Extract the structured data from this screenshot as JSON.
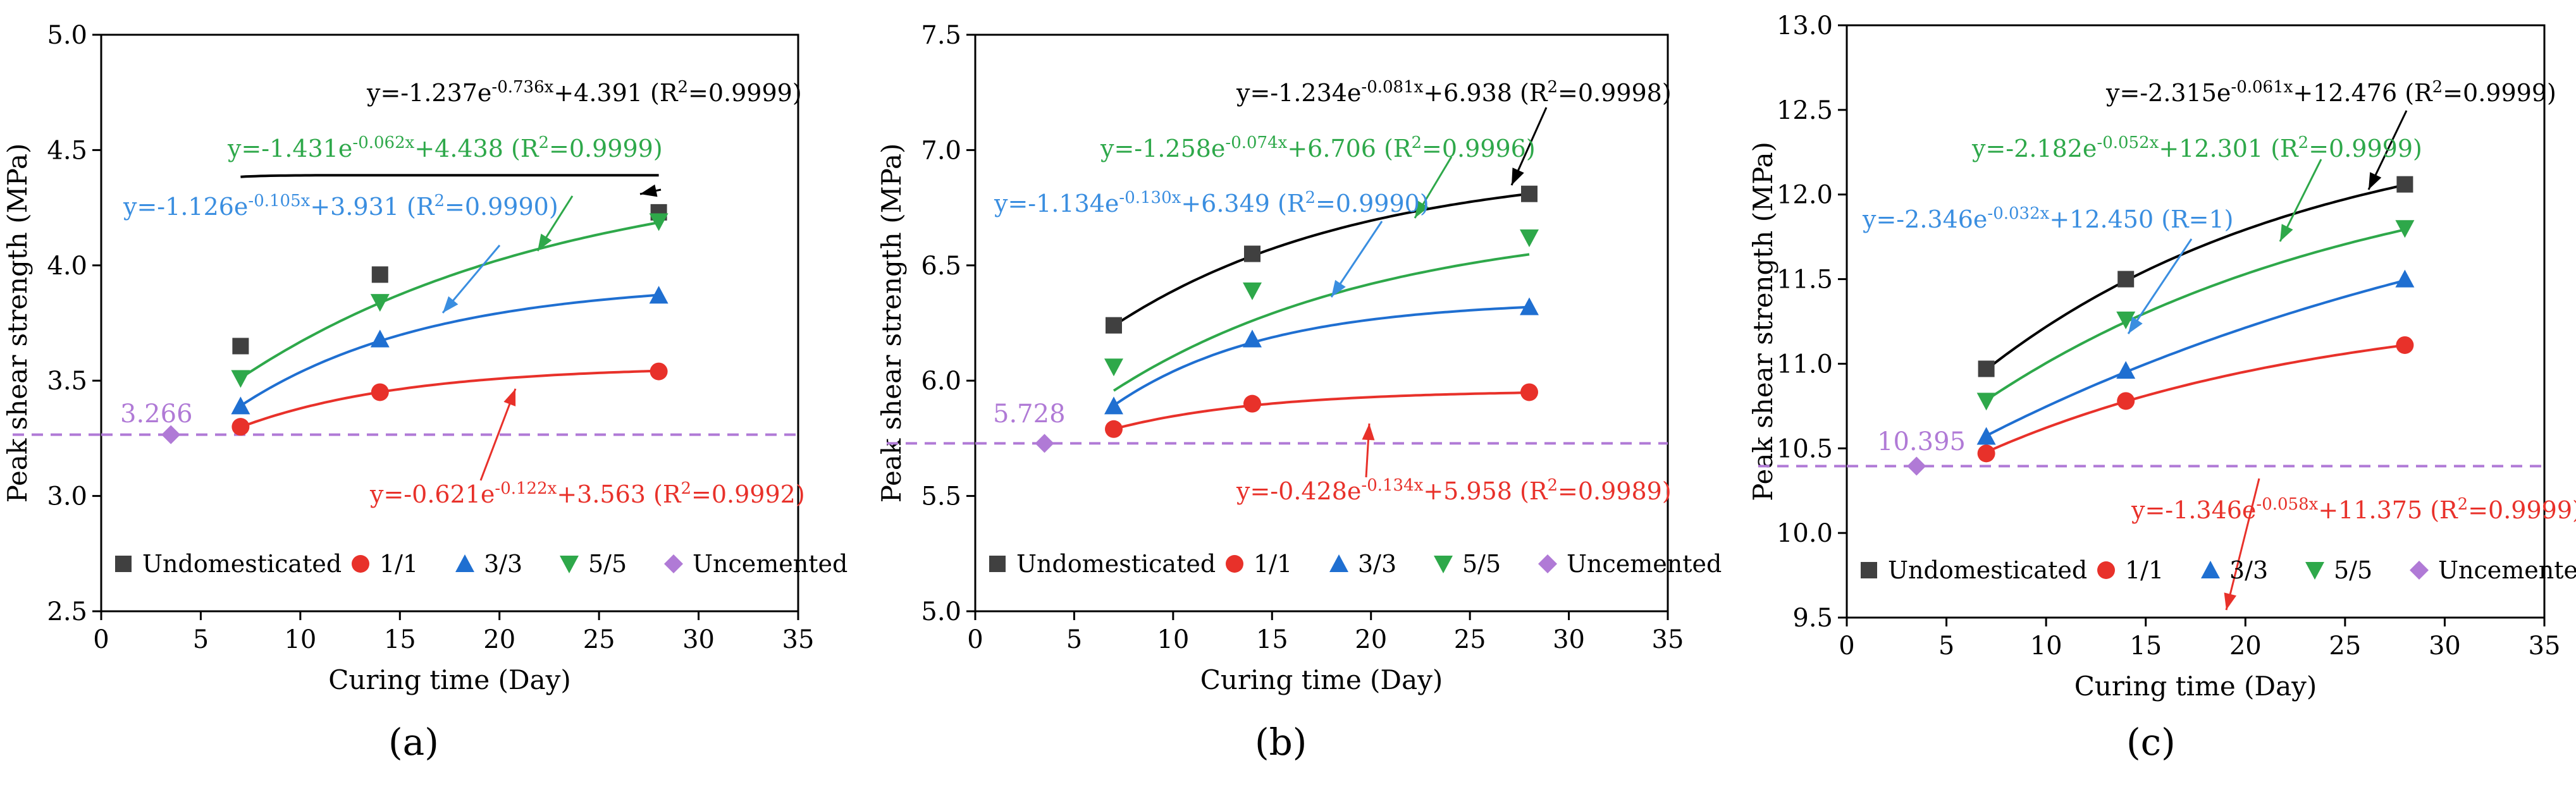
{
  "colors": {
    "Undomesticated": "#404040",
    "1/1": "#e8312a",
    "3/3": "#1f6fd1",
    "5/5": "#2ea84a",
    "Uncemented": "#b07ad6",
    "eq_blue": "#3a8ee0",
    "eq_green": "#2ea84a"
  },
  "chart_data": [
    {
      "type": "line",
      "label": "(a)",
      "xlabel": "Curing time (Day)",
      "ylabel": "Peak shear strength (MPa)",
      "xlim": [
        0,
        35
      ],
      "ylim": [
        2.5,
        5.0
      ],
      "xticks": [
        "0",
        "5",
        "10",
        "15",
        "20",
        "25",
        "30",
        "35"
      ],
      "yticks": [
        "2.5",
        "3.0",
        "3.5",
        "4.0",
        "4.5",
        "5.0"
      ],
      "x": [
        7,
        14,
        28
      ],
      "series": [
        {
          "name": "Undomesticated",
          "values": [
            3.65,
            3.96,
            4.23
          ],
          "a": -1.237,
          "b": -0.736,
          "c": 4.391
        },
        {
          "name": "1/1",
          "values": [
            3.3,
            3.45,
            3.54
          ],
          "a": -0.621,
          "b": -0.122,
          "c": 3.563
        },
        {
          "name": "3/3",
          "values": [
            3.39,
            3.68,
            3.87
          ],
          "a": -1.126,
          "b": -0.105,
          "c": 3.931
        },
        {
          "name": "5/5",
          "values": [
            3.51,
            3.84,
            4.19
          ],
          "a": -1.431,
          "b": -0.062,
          "c": 4.438
        },
        {
          "name": "Uncemented",
          "x": 3.5,
          "value": 3.266,
          "label": "3.266"
        }
      ],
      "equations": [
        {
          "series": "Undomesticated",
          "pre": "y=-1.237e",
          "exp": "-0.736x",
          "mid": "+4.391 (R",
          "sq": "2",
          "post": "=0.9999)"
        },
        {
          "series": "5/5",
          "pre": "y=-1.431e",
          "exp": "-0.062x",
          "mid": "+4.438 (R",
          "sq": "2",
          "post": "=0.9999)"
        },
        {
          "series": "3/3",
          "pre": "y=-1.126e",
          "exp": "-0.105x",
          "mid": "+3.931 (R",
          "sq": "2",
          "post": "=0.9990)"
        },
        {
          "series": "1/1",
          "pre": "y=-0.621e",
          "exp": "-0.122x",
          "mid": "+3.563 (R",
          "sq": "2",
          "post": "=0.9992)"
        }
      ],
      "legend": [
        "Undomesticated",
        "1/1",
        "3/3",
        "5/5",
        "Uncemented"
      ]
    },
    {
      "type": "line",
      "label": "(b)",
      "xlabel": "Curing time (Day)",
      "ylabel": "Peak shear strength (MPa)",
      "xlim": [
        0,
        35
      ],
      "ylim": [
        5.0,
        7.5
      ],
      "xticks": [
        "0",
        "5",
        "10",
        "15",
        "20",
        "25",
        "30",
        "35"
      ],
      "yticks": [
        "5.0",
        "5.5",
        "6.0",
        "6.5",
        "7.0",
        "7.5"
      ],
      "x": [
        7,
        14,
        28
      ],
      "series": [
        {
          "name": "Undomesticated",
          "values": [
            6.24,
            6.55,
            6.81
          ],
          "a": -1.234,
          "b": -0.081,
          "c": 6.938
        },
        {
          "name": "1/1",
          "values": [
            5.79,
            5.9,
            5.95
          ],
          "a": -0.428,
          "b": -0.134,
          "c": 5.958
        },
        {
          "name": "3/3",
          "values": [
            5.89,
            6.18,
            6.32
          ],
          "a": -1.134,
          "b": -0.13,
          "c": 6.349
        },
        {
          "name": "5/5",
          "values": [
            6.06,
            6.39,
            6.62
          ],
          "a": -1.258,
          "b": -0.074,
          "c": 6.706
        },
        {
          "name": "Uncemented",
          "x": 3.5,
          "value": 5.728,
          "label": "5.728"
        }
      ],
      "equations": [
        {
          "series": "Undomesticated",
          "pre": "y=-1.234e",
          "exp": "-0.081x",
          "mid": "+6.938 (R",
          "sq": "2",
          "post": "=0.9998)"
        },
        {
          "series": "5/5",
          "pre": "y=-1.258e",
          "exp": "-0.074x",
          "mid": "+6.706 (R",
          "sq": "2",
          "post": "=0.9996)"
        },
        {
          "series": "3/3",
          "pre": "y=-1.134e",
          "exp": "-0.130x",
          "mid": "+6.349 (R",
          "sq": "2",
          "post": "=0.9990)"
        },
        {
          "series": "1/1",
          "pre": "y=-0.428e",
          "exp": "-0.134x",
          "mid": "+5.958 (R",
          "sq": "2",
          "post": "=0.9989)"
        }
      ],
      "legend": [
        "Undomesticated",
        "1/1",
        "3/3",
        "5/5",
        "Uncemented"
      ]
    },
    {
      "type": "line",
      "label": "(c)",
      "xlabel": "Curing time (Day)",
      "ylabel": "Peak shear strength (MPa)",
      "xlim": [
        0,
        35
      ],
      "ylim": [
        9.5,
        13.0
      ],
      "xticks": [
        "0",
        "5",
        "10",
        "15",
        "20",
        "25",
        "30",
        "35"
      ],
      "yticks": [
        "9.5",
        "10.0",
        "10.5",
        "11.0",
        "11.5",
        "12.0",
        "12.5",
        "13.0"
      ],
      "x": [
        7,
        14,
        28
      ],
      "series": [
        {
          "name": "Undomesticated",
          "values": [
            10.97,
            11.5,
            12.06
          ],
          "a": -2.315,
          "b": -0.061,
          "c": 12.476
        },
        {
          "name": "1/1",
          "values": [
            10.47,
            10.78,
            11.11
          ],
          "a": -1.346,
          "b": -0.058,
          "c": 11.375
        },
        {
          "name": "3/3",
          "values": [
            10.57,
            10.96,
            11.5
          ],
          "a": -2.346,
          "b": -0.032,
          "c": 12.45
        },
        {
          "name": "5/5",
          "values": [
            10.78,
            11.26,
            11.8
          ],
          "a": -2.182,
          "b": -0.052,
          "c": 12.301
        },
        {
          "name": "Uncemented",
          "x": 3.5,
          "value": 10.395,
          "label": "10.395"
        }
      ],
      "equations": [
        {
          "series": "Undomesticated",
          "pre": "y=-2.315e",
          "exp": "-0.061x",
          "mid": "+12.476 (R",
          "sq": "2",
          "post": "=0.9999)"
        },
        {
          "series": "5/5",
          "pre": "y=-2.182e",
          "exp": "-0.052x",
          "mid": "+12.301 (R",
          "sq": "2",
          "post": "=0.9999)"
        },
        {
          "series": "3/3",
          "pre": "y=-2.346e",
          "exp": "-0.032x",
          "mid": "+12.450 (R",
          "sq": "",
          "post": "=1)"
        },
        {
          "series": "1/1",
          "pre": "y=-1.346e",
          "exp": "-0.058x",
          "mid": "+11.375 (R",
          "sq": "2",
          "post": "=0.9999)"
        }
      ],
      "legend": [
        "Undomesticated",
        "1/1",
        "3/3",
        "5/5",
        "Uncemented"
      ]
    }
  ]
}
